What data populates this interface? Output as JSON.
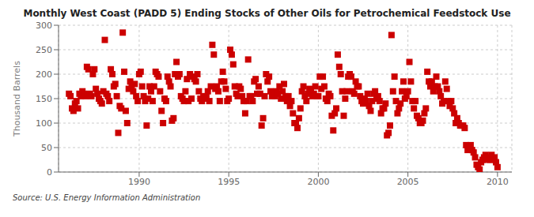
{
  "chart_data": {
    "type": "scatter",
    "title": "Monthly West Coast (PADD 5) Ending Stocks of Other Oils for Petrochemical Feedstock Use",
    "y_label": "Thousand Barrels",
    "annotations": [
      "Source: U.S. Energy Information Administration"
    ],
    "color": "#cc0000",
    "marker": "square",
    "grid": true,
    "xlim": [
      1985.5,
      2010.8
    ],
    "ylim": [
      0,
      300
    ],
    "xticks": [
      1990,
      1995,
      2000,
      2005,
      2010
    ],
    "yticks": [
      0,
      50,
      100,
      150,
      200,
      250,
      300
    ],
    "x": [
      1986.083,
      1986.167,
      1986.25,
      1986.333,
      1986.417,
      1986.5,
      1986.583,
      1986.667,
      1986.75,
      1986.833,
      1986.917,
      1987.0,
      1987.083,
      1987.167,
      1987.25,
      1987.333,
      1987.417,
      1987.5,
      1987.583,
      1987.667,
      1987.75,
      1987.833,
      1987.917,
      1988.0,
      1988.083,
      1988.167,
      1988.25,
      1988.333,
      1988.417,
      1988.5,
      1988.583,
      1988.667,
      1988.75,
      1988.833,
      1988.917,
      1989.0,
      1989.083,
      1989.167,
      1989.25,
      1989.333,
      1989.417,
      1989.5,
      1989.583,
      1989.667,
      1989.75,
      1989.833,
      1989.917,
      1990.0,
      1990.083,
      1990.167,
      1990.25,
      1990.333,
      1990.417,
      1990.5,
      1990.583,
      1990.667,
      1990.75,
      1990.833,
      1990.917,
      1991.0,
      1991.083,
      1991.167,
      1991.25,
      1991.333,
      1991.417,
      1991.5,
      1991.583,
      1991.667,
      1991.75,
      1991.833,
      1991.917,
      1992.0,
      1992.083,
      1992.167,
      1992.25,
      1992.333,
      1992.417,
      1992.5,
      1992.583,
      1992.667,
      1992.75,
      1992.833,
      1992.917,
      1993.0,
      1993.083,
      1993.167,
      1993.25,
      1993.333,
      1993.417,
      1993.5,
      1993.583,
      1993.667,
      1993.75,
      1993.833,
      1993.917,
      1994.0,
      1994.083,
      1994.167,
      1994.25,
      1994.333,
      1994.417,
      1994.5,
      1994.583,
      1994.667,
      1994.75,
      1994.833,
      1994.917,
      1995.0,
      1995.083,
      1995.167,
      1995.25,
      1995.333,
      1995.417,
      1995.5,
      1995.583,
      1995.667,
      1995.75,
      1995.833,
      1995.917,
      1996.0,
      1996.083,
      1996.167,
      1996.25,
      1996.333,
      1996.417,
      1996.5,
      1996.583,
      1996.667,
      1996.75,
      1996.833,
      1996.917,
      1997.0,
      1997.083,
      1997.167,
      1997.25,
      1997.333,
      1997.417,
      1997.5,
      1997.583,
      1997.667,
      1997.75,
      1997.833,
      1997.917,
      1998.0,
      1998.083,
      1998.167,
      1998.25,
      1998.333,
      1998.417,
      1998.5,
      1998.583,
      1998.667,
      1998.75,
      1998.833,
      1998.917,
      1999.0,
      1999.083,
      1999.167,
      1999.25,
      1999.333,
      1999.417,
      1999.5,
      1999.583,
      1999.667,
      1999.75,
      1999.833,
      1999.917,
      2000.0,
      2000.083,
      2000.167,
      2000.25,
      2000.333,
      2000.417,
      2000.5,
      2000.583,
      2000.667,
      2000.75,
      2000.833,
      2000.917,
      2001.0,
      2001.083,
      2001.167,
      2001.25,
      2001.333,
      2001.417,
      2001.5,
      2001.583,
      2001.667,
      2001.75,
      2001.833,
      2001.917,
      2002.0,
      2002.083,
      2002.167,
      2002.25,
      2002.333,
      2002.417,
      2002.5,
      2002.583,
      2002.667,
      2002.75,
      2002.833,
      2002.917,
      2003.0,
      2003.083,
      2003.167,
      2003.25,
      2003.333,
      2003.417,
      2003.5,
      2003.583,
      2003.667,
      2003.75,
      2003.833,
      2003.917,
      2004.0,
      2004.083,
      2004.167,
      2004.25,
      2004.333,
      2004.417,
      2004.5,
      2004.583,
      2004.667,
      2004.75,
      2004.833,
      2004.917,
      2005.0,
      2005.083,
      2005.167,
      2005.25,
      2005.333,
      2005.417,
      2005.5,
      2005.583,
      2005.667,
      2005.75,
      2005.833,
      2005.917,
      2006.0,
      2006.083,
      2006.167,
      2006.25,
      2006.333,
      2006.417,
      2006.5,
      2006.583,
      2006.667,
      2006.75,
      2006.833,
      2006.917,
      2007.0,
      2007.083,
      2007.167,
      2007.25,
      2007.333,
      2007.417,
      2007.5,
      2007.583,
      2007.667,
      2007.75,
      2007.833,
      2007.917,
      2008.0,
      2008.083,
      2008.167,
      2008.25,
      2008.333,
      2008.417,
      2008.5,
      2008.583,
      2008.667,
      2008.75,
      2008.833,
      2008.917,
      2009.0,
      2009.083,
      2009.167,
      2009.25,
      2009.333,
      2009.417,
      2009.5,
      2009.583,
      2009.667,
      2009.75,
      2009.833,
      2009.917,
      2010.0
    ],
    "values": [
      160,
      155,
      130,
      125,
      140,
      145,
      130,
      160,
      155,
      165,
      160,
      155,
      215,
      210,
      160,
      155,
      200,
      210,
      170,
      160,
      150,
      145,
      140,
      165,
      270,
      160,
      155,
      145,
      210,
      200,
      175,
      180,
      155,
      80,
      135,
      130,
      285,
      205,
      125,
      100,
      170,
      185,
      175,
      165,
      180,
      155,
      145,
      200,
      205,
      175,
      155,
      145,
      95,
      150,
      175,
      165,
      145,
      175,
      205,
      200,
      195,
      165,
      125,
      100,
      150,
      145,
      195,
      185,
      175,
      105,
      110,
      200,
      225,
      195,
      200,
      155,
      150,
      145,
      165,
      190,
      145,
      200,
      150,
      195,
      190,
      185,
      200,
      165,
      150,
      145,
      155,
      150,
      155,
      165,
      145,
      175,
      260,
      240,
      170,
      175,
      165,
      145,
      185,
      205,
      185,
      170,
      145,
      150,
      250,
      240,
      220,
      175,
      160,
      155,
      175,
      170,
      155,
      145,
      120,
      145,
      230,
      155,
      155,
      145,
      185,
      190,
      160,
      175,
      160,
      95,
      110,
      155,
      200,
      185,
      195,
      165,
      155,
      160,
      155,
      165,
      160,
      175,
      150,
      165,
      180,
      155,
      145,
      155,
      135,
      145,
      120,
      100,
      100,
      90,
      110,
      130,
      165,
      175,
      155,
      145,
      160,
      170,
      165,
      155,
      160,
      175,
      155,
      155,
      195,
      170,
      195,
      175,
      150,
      145,
      160,
      155,
      115,
      85,
      120,
      130,
      240,
      215,
      200,
      165,
      115,
      150,
      165,
      195,
      200,
      195,
      165,
      160,
      185,
      175,
      175,
      155,
      145,
      140,
      150,
      145,
      160,
      135,
      125,
      145,
      160,
      165,
      150,
      155,
      145,
      120,
      130,
      130,
      140,
      75,
      80,
      95,
      280,
      165,
      195,
      145,
      120,
      130,
      140,
      165,
      185,
      150,
      155,
      165,
      225,
      185,
      145,
      130,
      145,
      115,
      110,
      100,
      100,
      105,
      120,
      130,
      205,
      185,
      175,
      185,
      165,
      175,
      195,
      175,
      165,
      155,
      140,
      145,
      185,
      170,
      145,
      135,
      145,
      130,
      120,
      100,
      110,
      100,
      95,
      95,
      95,
      90,
      55,
      45,
      50,
      55,
      45,
      40,
      30,
      15,
      10,
      5,
      20,
      25,
      30,
      35,
      25,
      30,
      25,
      35,
      25,
      30,
      20,
      10
    ]
  }
}
